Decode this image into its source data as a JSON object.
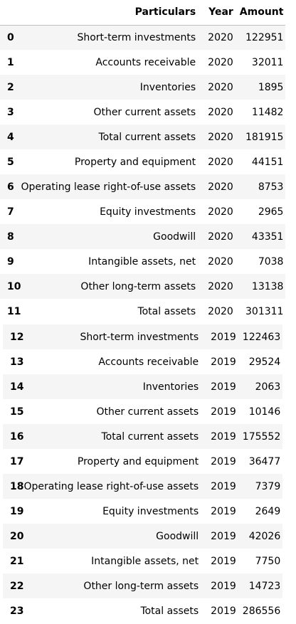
{
  "header": {
    "index": "",
    "particulars": "Particulars",
    "year": "Year",
    "amount": "Amount"
  },
  "rows_a": [
    {
      "idx": "0",
      "particulars": "Short-term investments",
      "year": "2020",
      "amount": "122951"
    },
    {
      "idx": "1",
      "particulars": "Accounts receivable",
      "year": "2020",
      "amount": "32011"
    },
    {
      "idx": "2",
      "particulars": "Inventories",
      "year": "2020",
      "amount": "1895"
    },
    {
      "idx": "3",
      "particulars": "Other current assets",
      "year": "2020",
      "amount": "11482"
    },
    {
      "idx": "4",
      "particulars": "Total current assets",
      "year": "2020",
      "amount": "181915"
    },
    {
      "idx": "5",
      "particulars": "Property and equipment",
      "year": "2020",
      "amount": "44151"
    },
    {
      "idx": "6",
      "particulars": "Operating lease right-of-use assets",
      "year": "2020",
      "amount": "8753"
    },
    {
      "idx": "7",
      "particulars": "Equity investments",
      "year": "2020",
      "amount": "2965"
    },
    {
      "idx": "8",
      "particulars": "Goodwill",
      "year": "2020",
      "amount": "43351"
    },
    {
      "idx": "9",
      "particulars": "Intangible assets, net",
      "year": "2020",
      "amount": "7038"
    },
    {
      "idx": "10",
      "particulars": "Other long-term assets",
      "year": "2020",
      "amount": "13138"
    },
    {
      "idx": "11",
      "particulars": "Total assets",
      "year": "2020",
      "amount": "301311"
    }
  ],
  "rows_b": [
    {
      "idx": "12",
      "particulars": "Short-term investments",
      "year": "2019",
      "amount": "122463"
    },
    {
      "idx": "13",
      "particulars": "Accounts receivable",
      "year": "2019",
      "amount": "29524"
    },
    {
      "idx": "14",
      "particulars": "Inventories",
      "year": "2019",
      "amount": "2063"
    },
    {
      "idx": "15",
      "particulars": "Other current assets",
      "year": "2019",
      "amount": "10146"
    },
    {
      "idx": "16",
      "particulars": "Total current assets",
      "year": "2019",
      "amount": "175552"
    },
    {
      "idx": "17",
      "particulars": "Property and equipment",
      "year": "2019",
      "amount": "36477"
    },
    {
      "idx": "18",
      "particulars": "Operating lease right-of-use assets",
      "year": "2019",
      "amount": "7379"
    },
    {
      "idx": "19",
      "particulars": "Equity investments",
      "year": "2019",
      "amount": "2649"
    },
    {
      "idx": "20",
      "particulars": "Goodwill",
      "year": "2019",
      "amount": "42026"
    },
    {
      "idx": "21",
      "particulars": "Intangible assets, net",
      "year": "2019",
      "amount": "7750"
    },
    {
      "idx": "22",
      "particulars": "Other long-term assets",
      "year": "2019",
      "amount": "14723"
    },
    {
      "idx": "23",
      "particulars": "Total assets",
      "year": "2019",
      "amount": "286556"
    }
  ]
}
